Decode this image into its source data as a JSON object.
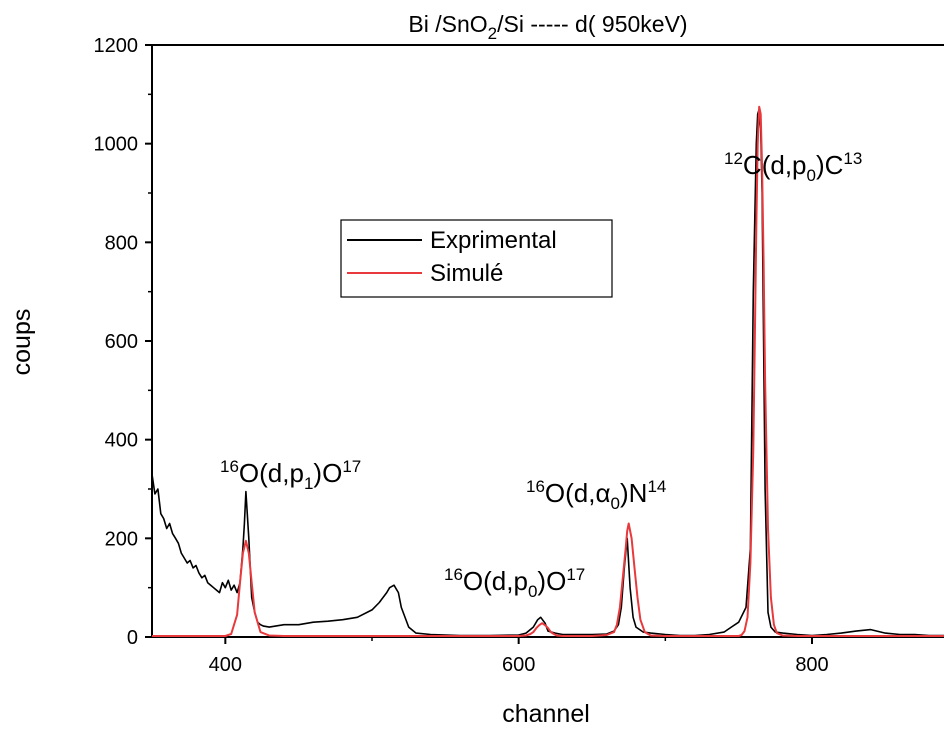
{
  "chart_data": {
    "type": "line",
    "title": {
      "parts": [
        {
          "t": "Bi /SnO"
        },
        {
          "t": "2",
          "sub": true
        },
        {
          "t": "/Si ----- d( 950keV)"
        }
      ]
    },
    "xlabel": "channel",
    "ylabel": "coups",
    "xlim": [
      350,
      890
    ],
    "ylim": [
      0,
      1200
    ],
    "xticks": [
      400,
      600,
      800
    ],
    "yticks": [
      0,
      200,
      400,
      600,
      800,
      1000,
      1200
    ],
    "grid": false,
    "legend_position": "center-left",
    "series": [
      {
        "name": "Exprimental",
        "color": "#000000",
        "x": [
          350,
          352,
          354,
          356,
          358,
          360,
          362,
          364,
          366,
          368,
          370,
          372,
          374,
          376,
          378,
          380,
          382,
          384,
          386,
          388,
          390,
          392,
          394,
          396,
          398,
          400,
          402,
          404,
          406,
          408,
          410,
          412,
          413,
          414,
          416,
          418,
          420,
          422,
          424,
          426,
          430,
          440,
          450,
          460,
          470,
          480,
          490,
          500,
          505,
          510,
          512,
          515,
          518,
          520,
          525,
          530,
          540,
          560,
          580,
          600,
          605,
          610,
          613,
          615,
          618,
          620,
          625,
          630,
          640,
          650,
          660,
          665,
          668,
          670,
          672,
          674,
          676,
          678,
          680,
          685,
          690,
          700,
          710,
          720,
          730,
          740,
          745,
          750,
          755,
          758,
          760,
          762,
          763,
          764,
          765,
          766,
          767,
          768,
          770,
          772,
          775,
          780,
          790,
          800,
          810,
          820,
          830,
          840,
          850,
          860,
          870,
          880,
          890
        ],
        "y": [
          330,
          290,
          300,
          250,
          240,
          220,
          230,
          210,
          200,
          190,
          170,
          160,
          150,
          155,
          140,
          145,
          130,
          120,
          125,
          110,
          105,
          100,
          95,
          90,
          110,
          100,
          115,
          95,
          105,
          90,
          110,
          180,
          230,
          295,
          200,
          80,
          50,
          30,
          25,
          22,
          20,
          25,
          25,
          30,
          32,
          35,
          40,
          55,
          70,
          90,
          100,
          105,
          90,
          60,
          20,
          8,
          5,
          3,
          3,
          4,
          8,
          20,
          35,
          40,
          28,
          12,
          8,
          5,
          5,
          5,
          6,
          12,
          25,
          60,
          140,
          200,
          100,
          40,
          20,
          10,
          8,
          5,
          3,
          3,
          5,
          10,
          20,
          30,
          60,
          180,
          700,
          1000,
          1060,
          1070,
          1030,
          900,
          600,
          300,
          50,
          20,
          10,
          8,
          5,
          3,
          5,
          8,
          12,
          15,
          8,
          5,
          5,
          3,
          3
        ]
      },
      {
        "name": "Simulé",
        "color": "#e8393c",
        "x": [
          350,
          395,
          400,
          404,
          408,
          410,
          412,
          414,
          416,
          418,
          420,
          424,
          430,
          440,
          460,
          500,
          540,
          560,
          580,
          600,
          605,
          608,
          610,
          612,
          614,
          616,
          618,
          620,
          622,
          624,
          626,
          630,
          640,
          650,
          660,
          665,
          667,
          669,
          671,
          673,
          674,
          675,
          677,
          679,
          681,
          683,
          686,
          690,
          700,
          720,
          740,
          750,
          752,
          754,
          756,
          758,
          760,
          761,
          762,
          763,
          764,
          765,
          766,
          767,
          768,
          770,
          772,
          774,
          776,
          780,
          790,
          820,
          860,
          890
        ],
        "y": [
          2,
          2,
          2,
          6,
          45,
          110,
          170,
          195,
          170,
          110,
          50,
          10,
          3,
          2,
          2,
          2,
          2,
          2,
          2,
          2,
          3,
          6,
          10,
          18,
          24,
          28,
          24,
          18,
          10,
          6,
          3,
          2,
          2,
          2,
          4,
          10,
          25,
          60,
          120,
          180,
          215,
          230,
          200,
          140,
          80,
          35,
          10,
          3,
          2,
          2,
          2,
          2,
          4,
          12,
          40,
          150,
          380,
          600,
          830,
          1000,
          1075,
          1060,
          950,
          760,
          520,
          220,
          80,
          25,
          8,
          3,
          2,
          2,
          2,
          2
        ]
      }
    ],
    "annotations": [
      {
        "parts": [
          {
            "t": "16",
            "sup": true
          },
          {
            "t": "O(d,p"
          },
          {
            "t": "1",
            "sub": true
          },
          {
            "t": ")O"
          },
          {
            "t": "17",
            "sup": true
          }
        ]
      },
      {
        "parts": [
          {
            "t": "16",
            "sup": true
          },
          {
            "t": "O(d,p"
          },
          {
            "t": "0",
            "sub": true
          },
          {
            "t": ")O"
          },
          {
            "t": "17",
            "sup": true
          }
        ]
      },
      {
        "parts": [
          {
            "t": "16",
            "sup": true
          },
          {
            "t": "O(d,"
          },
          {
            "t": "α",
            "sub": false
          },
          {
            "t": "0",
            "sub": true
          },
          {
            "t": ")N"
          },
          {
            "t": "14",
            "sup": true
          }
        ]
      },
      {
        "parts": [
          {
            "t": "12",
            "sup": true
          },
          {
            "t": "C(d,p"
          },
          {
            "t": "0",
            "sub": true
          },
          {
            "t": ")C"
          },
          {
            "t": "13",
            "sup": true
          }
        ]
      }
    ]
  }
}
